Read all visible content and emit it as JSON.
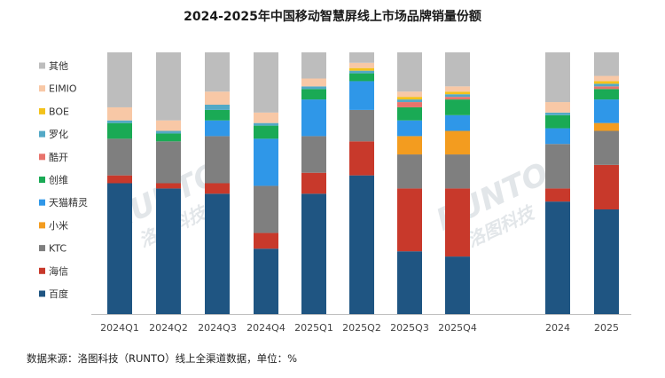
{
  "chart_data": {
    "type": "bar",
    "stacked": true,
    "percent": true,
    "title": "2024-2025年中国移动智慧屏线上市场品牌销量份额",
    "source": "数据来源：洛图科技（RUNTO）线上全渠道数据，单位：%",
    "watermark": {
      "brand": "RUNTO",
      "cn": "洛图科技"
    },
    "categories": [
      "2024Q1",
      "2024Q2",
      "2024Q3",
      "2024Q4",
      "2025Q1",
      "2025Q2",
      "2025Q3",
      "2025Q4",
      "2024",
      "2025"
    ],
    "ylim": [
      0,
      100
    ],
    "legend_position": "left",
    "series": [
      {
        "name": "百度",
        "color": "#1f5582",
        "values": [
          50,
          48,
          46,
          25,
          46,
          53,
          24,
          22,
          43,
          40
        ]
      },
      {
        "name": "海信",
        "color": "#c8392b",
        "values": [
          3,
          2,
          4,
          6,
          8,
          13,
          24,
          26,
          5,
          17
        ]
      },
      {
        "name": "KTC",
        "color": "#7f7f7f",
        "values": [
          14,
          16,
          18,
          18,
          14,
          12,
          13,
          13,
          17,
          13
        ]
      },
      {
        "name": "小米",
        "color": "#f39c1f",
        "values": [
          0,
          0,
          0,
          0,
          0,
          0,
          7,
          9,
          0,
          3
        ]
      },
      {
        "name": "天猫精灵",
        "color": "#2f97e8",
        "values": [
          0,
          0,
          6,
          18,
          14,
          11,
          6,
          6,
          6,
          9
        ]
      },
      {
        "name": "创维",
        "color": "#1aaa55",
        "values": [
          6,
          3,
          4,
          5,
          4,
          3,
          5,
          6,
          5,
          4
        ]
      },
      {
        "name": "酷开",
        "color": "#e8736c",
        "values": [
          0,
          0,
          0,
          0,
          0,
          0,
          2,
          1,
          0,
          1
        ]
      },
      {
        "name": "罗化",
        "color": "#53a9c6",
        "values": [
          1,
          1,
          2,
          1,
          1,
          1,
          1,
          1,
          1,
          1
        ]
      },
      {
        "name": "BOE",
        "color": "#f3c21b",
        "values": [
          0,
          0,
          0,
          0,
          0,
          1,
          1,
          1,
          0,
          1
        ]
      },
      {
        "name": "EIMIO",
        "color": "#f8c8a6",
        "values": [
          5,
          4,
          5,
          4,
          3,
          2,
          2,
          2,
          4,
          2
        ]
      },
      {
        "name": "其他",
        "color": "#bdbdbd",
        "values": [
          21,
          26,
          15,
          23,
          10,
          4,
          15,
          13,
          19,
          9
        ]
      }
    ]
  }
}
